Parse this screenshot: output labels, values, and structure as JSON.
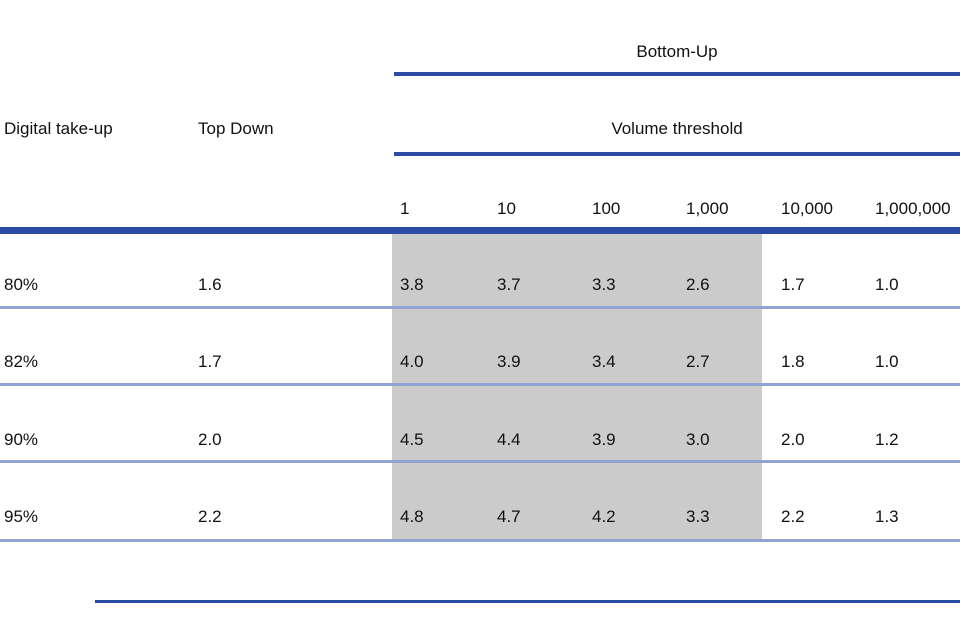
{
  "figure": {
    "title_group": "Bottom-Up",
    "row_header": "Digital take-up",
    "top_down_header": "Top Down",
    "volume_header": "Volume threshold",
    "volume_columns": [
      "1",
      "10",
      "100",
      "1,000",
      "10,000",
      "1,000,000"
    ],
    "rows": [
      {
        "take_up": "80%",
        "top_down": "1.6",
        "values": [
          "3.8",
          "3.7",
          "3.3",
          "2.6",
          "1.7",
          "1.0"
        ]
      },
      {
        "take_up": "82%",
        "top_down": "1.7",
        "values": [
          "4.0",
          "3.9",
          "3.4",
          "2.7",
          "1.8",
          "1.0"
        ]
      },
      {
        "take_up": "90%",
        "top_down": "2.0",
        "values": [
          "4.5",
          "4.4",
          "3.9",
          "3.0",
          "2.0",
          "1.2"
        ]
      },
      {
        "take_up": "95%",
        "top_down": "2.2",
        "values": [
          "4.8",
          "4.7",
          "4.2",
          "3.3",
          "2.2",
          "1.3"
        ]
      }
    ]
  },
  "colors": {
    "rule_blue": "#2a4aa4",
    "separator_blue": "#8fa4d4",
    "highlight_gray": "#cbcbcb",
    "text": "#111111"
  },
  "chart_data": {
    "type": "table",
    "title": "Bottom-Up",
    "columns": [
      "Digital take-up",
      "Top Down",
      "1",
      "10",
      "100",
      "1,000",
      "10,000",
      "1,000,000"
    ],
    "rows": [
      [
        "80%",
        1.6,
        3.8,
        3.7,
        3.3,
        2.6,
        1.7,
        1.0
      ],
      [
        "82%",
        1.7,
        4.0,
        3.9,
        3.4,
        2.7,
        1.8,
        1.0
      ],
      [
        "90%",
        2.0,
        4.5,
        4.4,
        3.9,
        3.0,
        2.0,
        1.2
      ],
      [
        "95%",
        2.2,
        4.8,
        4.7,
        4.2,
        3.3,
        2.2,
        1.3
      ]
    ]
  }
}
